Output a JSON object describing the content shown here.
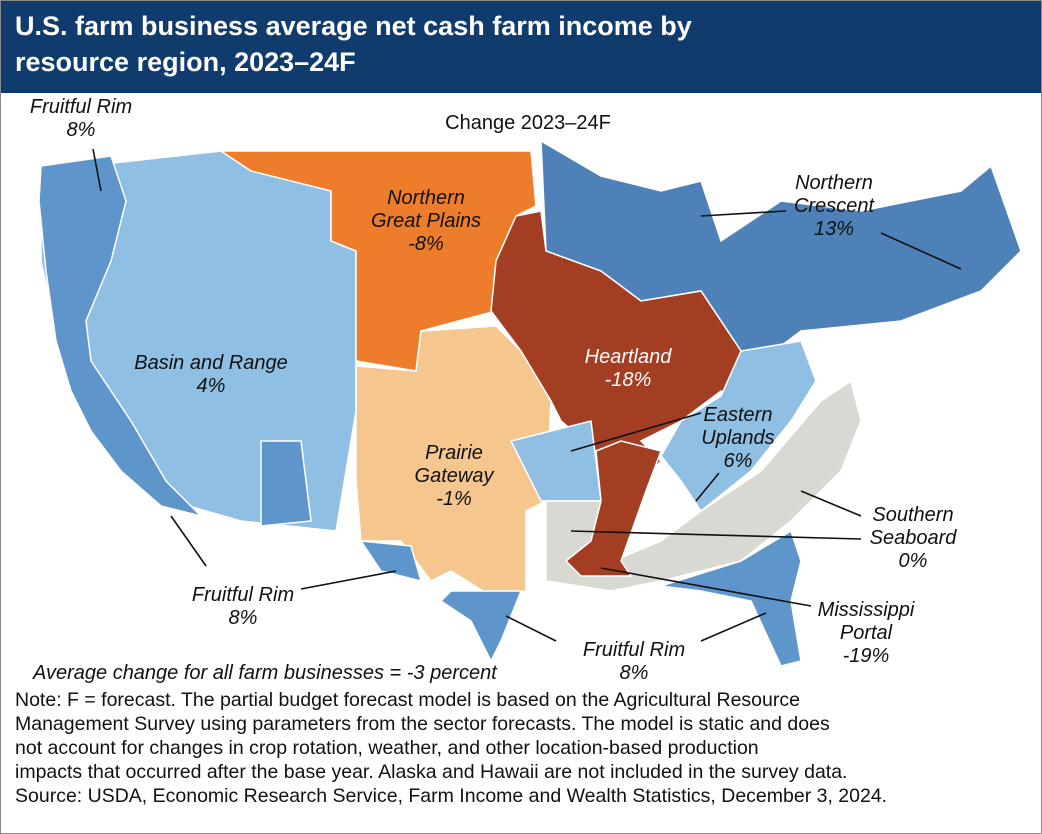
{
  "header": {
    "title_lines": [
      "U.S. farm business average net cash farm income by",
      "resource region, 2023–24F"
    ]
  },
  "map": {
    "subtitle": "Change 2023–24F",
    "regions": [
      {
        "color": "#5e95cb",
        "labels": [
          {
            "lines": [
              "Fruitful Rim"
            ],
            "change": "8%"
          },
          {
            "lines": [
              "Fruitful Rim"
            ],
            "change": "8%"
          },
          {
            "lines": [
              "Fruitful Rim"
            ],
            "change": "8%"
          }
        ]
      },
      {
        "color": "#8fbfe2",
        "labels": [
          {
            "lines": [
              "Basin and Range"
            ],
            "change": "4%"
          }
        ]
      },
      {
        "color": "#ee7d2b",
        "labels": [
          {
            "lines": [
              "Northern",
              "Great Plains"
            ],
            "change": "-8%"
          }
        ]
      },
      {
        "color": "#f5c68d",
        "labels": [
          {
            "lines": [
              "Prairie",
              "Gateway"
            ],
            "change": "-1%"
          }
        ]
      },
      {
        "color": "#a33e22",
        "labels": [
          {
            "lines": [
              "Heartland"
            ],
            "change": "-18%"
          }
        ]
      },
      {
        "color": "#4d81b7",
        "labels": [
          {
            "lines": [
              "Northern",
              "Crescent"
            ],
            "change": "13%"
          }
        ]
      },
      {
        "color": "#8fbfe2",
        "labels": [
          {
            "lines": [
              "Eastern",
              "Uplands"
            ],
            "change": "6%"
          }
        ]
      },
      {
        "color": "#d9d9d3",
        "labels": [
          {
            "lines": [
              "Southern",
              "Seaboard"
            ],
            "change": "0%"
          }
        ]
      },
      {
        "color": "#a33e22",
        "labels": [
          {
            "lines": [
              "Mississippi",
              "Portal"
            ],
            "change": "-19%"
          }
        ]
      }
    ],
    "average_note": "Average change for all farm businesses = -3 percent"
  },
  "notes": {
    "lines": [
      "Note: F = forecast. The partial budget forecast model is based on the Agricultural Resource",
      "Management Survey using parameters from the sector forecasts. The model is static and does",
      "not account for changes in crop rotation, weather, and other location-based production",
      "impacts that occurred after the base year. Alaska and Hawaii are not included in the survey data."
    ],
    "source": "Source: USDA, Economic Research Service, Farm Income and Wealth Statistics, December 3, 2024."
  }
}
